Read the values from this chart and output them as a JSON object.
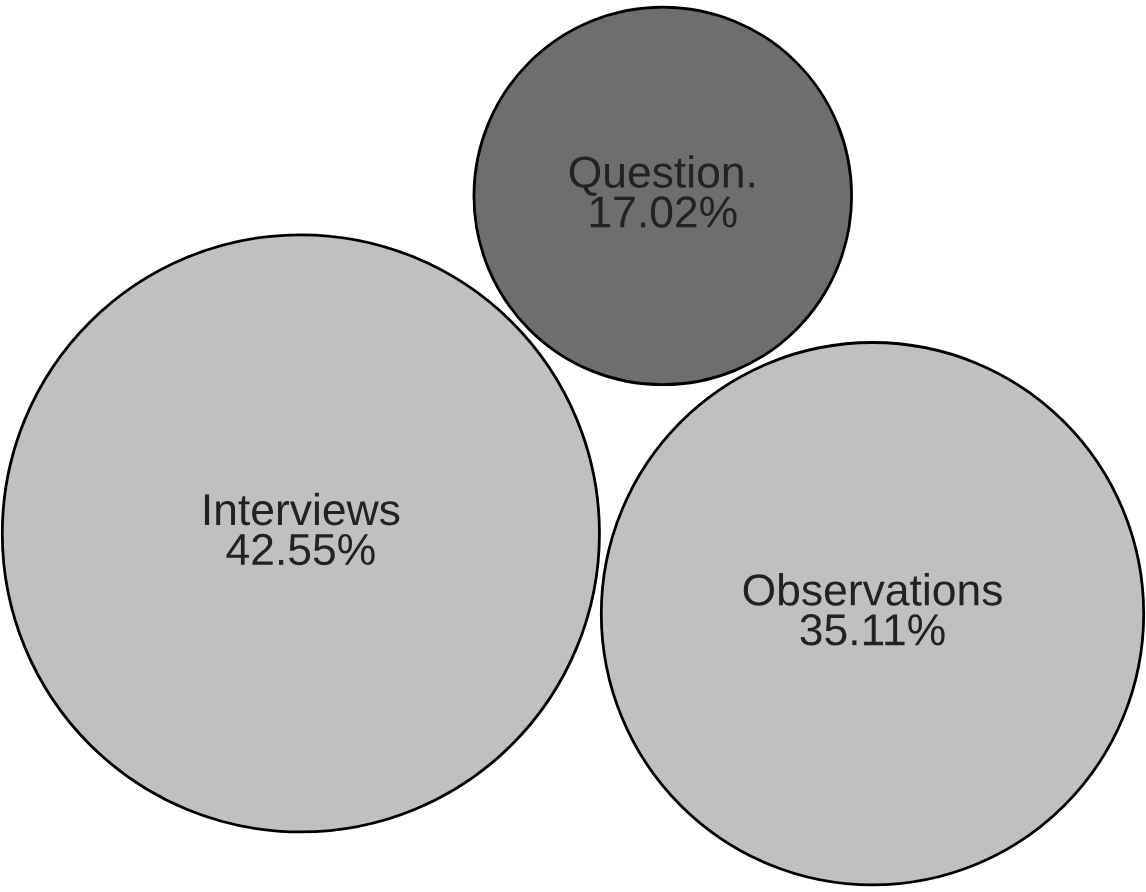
{
  "chart_data": {
    "type": "other",
    "categories": [
      "Interviews",
      "Observations",
      "Question."
    ],
    "values": [
      42.55,
      35.11,
      17.02
    ],
    "value_labels": [
      "42.55%",
      "35.11%",
      "17.02%"
    ],
    "colors": [
      "#c0c0c0",
      "#c0c0c0",
      "#6e6e6e"
    ]
  }
}
